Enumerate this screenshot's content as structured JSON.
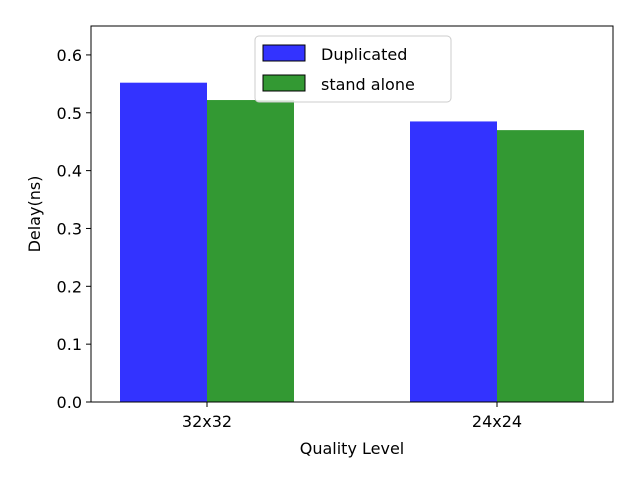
{
  "chart_data": {
    "type": "bar",
    "categories": [
      "32x32",
      "24x24"
    ],
    "series": [
      {
        "name": "Duplicated",
        "values": [
          0.552,
          0.485
        ],
        "color": "#3333ff"
      },
      {
        "name": "stand alone",
        "values": [
          0.522,
          0.47
        ],
        "color": "#339933"
      }
    ],
    "xlabel": "Quality Level",
    "ylabel": "Delay(ns)",
    "ylim": [
      0,
      0.65
    ],
    "yticks": [
      "0.0",
      "0.1",
      "0.2",
      "0.3",
      "0.4",
      "0.5",
      "0.6"
    ],
    "grid": false,
    "legend": "top-center"
  }
}
